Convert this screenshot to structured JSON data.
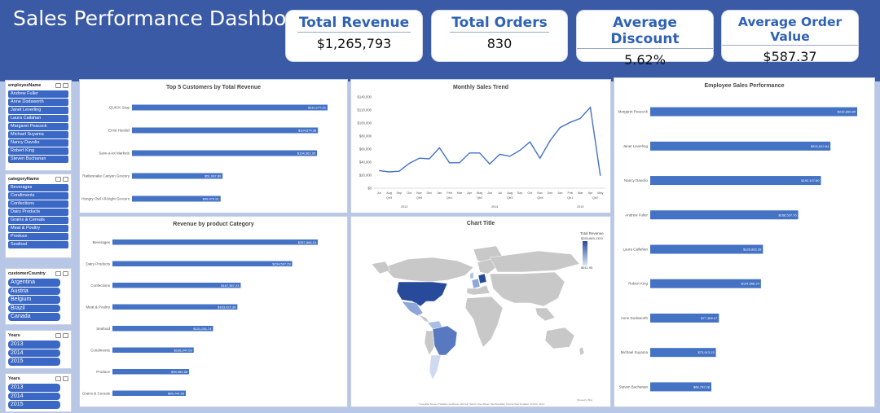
{
  "title": "Sales Performance Dashboard",
  "kpis": [
    {
      "label": "Total Revenue",
      "value": "$1,265,793"
    },
    {
      "label": "Total Orders",
      "value": "830"
    },
    {
      "label": "Average Discount",
      "value": "5.62%"
    },
    {
      "label": "Average Order Value",
      "value": "$587.37"
    }
  ],
  "slicers": {
    "employee": {
      "title": "employeeName",
      "items": [
        "Andrew Fuller",
        "Anne Dodsworth",
        "Janet Leverling",
        "Laura Callahan",
        "Margaret Peacock",
        "Michael Suyama",
        "Nancy Davolio",
        "Robert King",
        "Steven Buchanan"
      ]
    },
    "category": {
      "title": "categoryName",
      "items": [
        "Beverages",
        "Condiments",
        "Confections",
        "Dairy Products",
        "Grains & Cereals",
        "Meat & Poultry",
        "Produce",
        "Seafood"
      ]
    },
    "country": {
      "title": "customerCountry",
      "items": [
        "Argentina",
        "Austria",
        "Belgium",
        "Brazil",
        "Canada"
      ]
    },
    "years1": {
      "title": "Years",
      "items": [
        "2013",
        "2014",
        "2015"
      ]
    },
    "years2": {
      "title": "Years",
      "items": [
        "2013",
        "2014",
        "2015"
      ]
    }
  },
  "charts": {
    "top_customers": {
      "title": "Top 5 Customers by Total Revenue",
      "type": "bar",
      "categories": [
        "QUICK-Stop",
        "Ernst Handel",
        "Save-a-lot Markets",
        "Rattlesnake Canyon Grocery",
        "Hungry Owl All-Night Grocers"
      ],
      "values": [
        110277.31,
        104874.98,
        104361.95,
        51097.8,
        49979.91
      ],
      "labels": [
        "$110,277.31",
        "$104,874.98",
        "$104,361.95",
        "$51,097.80",
        "$49,979.91"
      ]
    },
    "monthly_trend": {
      "title": "Monthly Sales Trend",
      "type": "line",
      "y_ticks": [
        "$140,000",
        "$120,000",
        "$100,000",
        "$80,000",
        "$60,000",
        "$40,000",
        "$20,000",
        "$0"
      ],
      "ylim": [
        0,
        140000
      ],
      "months": [
        "Jul",
        "Aug",
        "Sep",
        "Oct",
        "Nov",
        "Dec",
        "Jan",
        "Feb",
        "Mar",
        "Apr",
        "May",
        "Jun",
        "Jul",
        "Aug",
        "Sep",
        "Oct",
        "Nov",
        "Dec",
        "Jan",
        "Feb",
        "Mar",
        "Apr",
        "May"
      ],
      "quarters": [
        "Qtr3",
        "Qtr4",
        "Qtr1",
        "Qtr2",
        "Qtr3",
        "Qtr4",
        "Qtr1",
        "Qtr2"
      ],
      "years": [
        "2013",
        "2014",
        "2015"
      ],
      "values": [
        27000,
        25000,
        26000,
        38000,
        46000,
        45000,
        62000,
        39000,
        39000,
        54000,
        54000,
        37000,
        52000,
        49000,
        58000,
        71000,
        46000,
        73000,
        93000,
        101000,
        107000,
        124000,
        19000
      ]
    },
    "employee_perf": {
      "title": "Employee Sales Performance",
      "type": "bar",
      "categories": [
        "Margaret Peacock",
        "Janet Leverling",
        "Nancy Davolio",
        "Andrew Fuller",
        "Laura Callahan",
        "Robert King",
        "Anne Dodsworth",
        "Michael Suyama",
        "Steven Buchanan"
      ],
      "values": [
        232890.85,
        202812.84,
        192107.6,
        166537.76,
        126862.28,
        124568.24,
        77308.07,
        73913.13,
        68792.28
      ],
      "labels": [
        "$232,890.85",
        "$202,812.84",
        "$192,107.60",
        "$166,537.76",
        "$126,862.28",
        "$124,568.24",
        "$77,308.07",
        "$73,913.13",
        "$68,792.28"
      ]
    },
    "category_rev": {
      "title": "Revenue by product Category",
      "type": "bar",
      "categories": [
        "Beverages",
        "Dairy Products",
        "Confections",
        "Meat & Poultry",
        "Seafood",
        "Condiments",
        "Produce",
        "Grains & Cereals"
      ],
      "values": [
        267868.18,
        234507.29,
        167357.23,
        163022.36,
        131261.74,
        106047.09,
        99984.58,
        95744.59
      ],
      "labels": [
        "$267,868.18",
        "$234,507.29",
        "$167,357.23",
        "$163,022.36",
        "$131,261.74",
        "$106,047.09",
        "$99,984.58",
        "$95,744.59"
      ]
    },
    "map": {
      "title": "Chart Title",
      "legend_title": "Total Revenue",
      "legend_max": "$263,683.1329",
      "legend_min": "$511.95",
      "credit_top": "Powered by Bing",
      "credit": "© Australian Bureau of Statistics, GeoNames, Microsoft, Navinfo, Open Places, OpenStreetMap, Overture Maps Fundation, TomTom, Zenrin"
    }
  }
}
